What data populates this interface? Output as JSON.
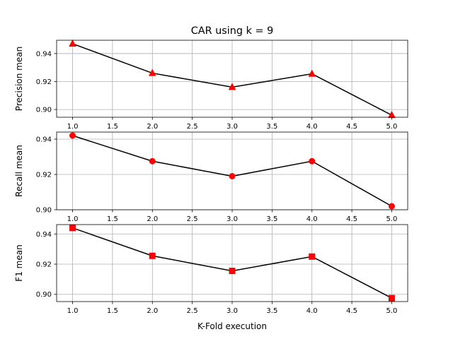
{
  "chart_data": [
    {
      "type": "line",
      "title": "CAR using k = 9",
      "xlabel": "",
      "ylabel": "Precision mean",
      "x": [
        1.0,
        2.0,
        3.0,
        4.0,
        5.0
      ],
      "series": [
        {
          "name": "",
          "values": [
            0.947,
            0.926,
            0.916,
            0.9255,
            0.896
          ],
          "color": "#000000",
          "marker": "triangle",
          "marker_color": "#ff0000"
        }
      ],
      "xlim": [
        0.8,
        5.2
      ],
      "ylim": [
        0.8945,
        0.9495
      ],
      "xticks": [
        "1.0",
        "1.5",
        "2.0",
        "2.5",
        "3.0",
        "3.5",
        "4.0",
        "4.5",
        "5.0"
      ],
      "yticks": [
        "0.90",
        "0.92",
        "0.94"
      ],
      "grid": true
    },
    {
      "type": "line",
      "title": "",
      "xlabel": "",
      "ylabel": "Recall mean",
      "x": [
        1.0,
        2.0,
        3.0,
        4.0,
        5.0
      ],
      "series": [
        {
          "name": "",
          "values": [
            0.942,
            0.9275,
            0.919,
            0.9275,
            0.902
          ],
          "color": "#000000",
          "marker": "circle",
          "marker_color": "#ff0000"
        }
      ],
      "xlim": [
        0.8,
        5.2
      ],
      "ylim": [
        0.9,
        0.944
      ],
      "xticks": [
        "1.0",
        "1.5",
        "2.0",
        "2.5",
        "3.0",
        "3.5",
        "4.0",
        "4.5",
        "5.0"
      ],
      "yticks": [
        "0.90",
        "0.92",
        "0.94"
      ],
      "grid": true
    },
    {
      "type": "line",
      "title": "",
      "xlabel": "K-Fold execution",
      "ylabel": "F1 mean",
      "x": [
        1.0,
        2.0,
        3.0,
        4.0,
        5.0
      ],
      "series": [
        {
          "name": "",
          "values": [
            0.944,
            0.9255,
            0.9155,
            0.925,
            0.8975
          ],
          "color": "#000000",
          "marker": "square",
          "marker_color": "#ff0000"
        }
      ],
      "xlim": [
        0.8,
        5.2
      ],
      "ylim": [
        0.8952,
        0.9462
      ],
      "xticks": [
        "1.0",
        "1.5",
        "2.0",
        "2.5",
        "3.0",
        "3.5",
        "4.0",
        "4.5",
        "5.0"
      ],
      "yticks": [
        "0.90",
        "0.92",
        "0.94"
      ],
      "grid": true
    }
  ]
}
